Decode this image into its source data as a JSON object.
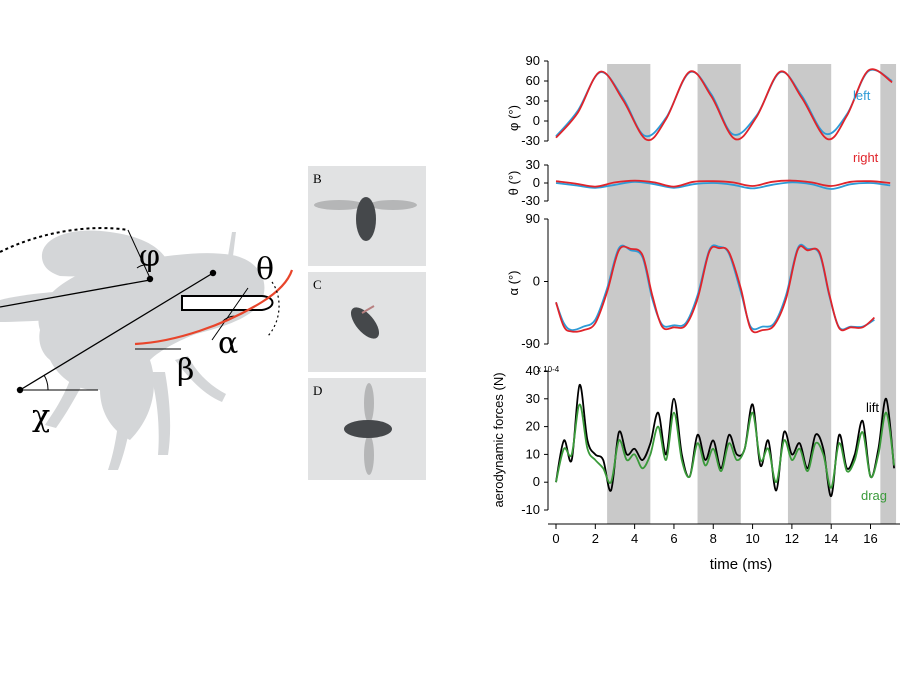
{
  "diagram": {
    "labels": {
      "phi": "φ",
      "theta": "θ",
      "alpha": "α",
      "beta": "β",
      "chi": "χ"
    },
    "colors": {
      "body": "#d4d6d8",
      "wing": "#c9cbcd",
      "stroke_path": "#e8452b"
    }
  },
  "photos": {
    "panels": [
      {
        "letter": "B"
      },
      {
        "letter": "C"
      },
      {
        "letter": "D"
      }
    ]
  },
  "chart_data": {
    "type": "line",
    "shaded_intervals_ms": [
      [
        2.6,
        4.8
      ],
      [
        7.2,
        9.4
      ],
      [
        11.8,
        14.0
      ],
      [
        16.5,
        17.3
      ]
    ],
    "xlabel": "time (ms)",
    "xlim": [
      -0.3,
      17.3
    ],
    "xticks": [
      "0",
      "2",
      "4",
      "6",
      "8",
      "10",
      "12",
      "14",
      "16"
    ],
    "panels": [
      {
        "ylabel": "φ (°)",
        "ylim": [
          -30,
          90
        ],
        "yticks": [
          "90",
          "60",
          "30",
          "0",
          "-30"
        ],
        "series": [
          {
            "name": "left",
            "color": "#2e9bd6",
            "x": [
              0,
              1.1,
              2.25,
              3.4,
              4.5,
              5.6,
              6.8,
              7.9,
              9.0,
              10.2,
              11.4,
              12.5,
              13.7,
              14.8,
              15.9,
              17.1
            ],
            "y": [
              -23,
              15,
              73,
              35,
              -22,
              5,
              73,
              40,
              -20,
              8,
              73,
              38,
              -19,
              10,
              75,
              60
            ]
          },
          {
            "name": "right",
            "color": "#e0242b",
            "x": [
              0,
              1.1,
              2.25,
              3.4,
              4.6,
              5.6,
              6.8,
              7.9,
              9.1,
              10.2,
              11.4,
              12.5,
              13.8,
              14.8,
              15.9,
              17.1
            ],
            "y": [
              -25,
              12,
              74,
              32,
              -28,
              3,
              74,
              37,
              -27,
              6,
              74,
              35,
              -27,
              8,
              76,
              58
            ]
          }
        ]
      },
      {
        "ylabel": "θ (°)",
        "ylim": [
          -30,
          30
        ],
        "yticks": [
          "30",
          "0",
          "-30"
        ],
        "series": [
          {
            "name": "left",
            "color": "#2e9bd6",
            "x": [
              0,
              1,
              2,
              3,
              4,
              5,
              6,
              7,
              8,
              9,
              10,
              11,
              12,
              13,
              14,
              15,
              16,
              17
            ],
            "y": [
              0,
              -4,
              -8,
              -3,
              2,
              -2,
              -8,
              -2,
              0,
              -3,
              -9,
              -3,
              1,
              -2,
              -10,
              -2,
              0,
              -4
            ]
          },
          {
            "name": "right",
            "color": "#e0242b",
            "x": [
              0,
              1,
              2,
              3,
              4,
              5,
              6,
              7,
              8,
              9,
              10,
              11,
              12,
              13,
              14,
              15,
              16,
              17
            ],
            "y": [
              3,
              -1,
              -6,
              1,
              4,
              1,
              -6,
              2,
              3,
              1,
              -5,
              2,
              4,
              1,
              -5,
              2,
              3,
              0
            ]
          }
        ]
      },
      {
        "ylabel": "α (°)",
        "ylim": [
          -90,
          90
        ],
        "yticks": [
          "90",
          "0",
          "-90"
        ],
        "series": [
          {
            "name": "left",
            "color": "#2e9bd6",
            "x": [
              0,
              0.4,
              0.8,
              1.4,
              2.0,
              2.6,
              3.2,
              3.8,
              4.4,
              4.9,
              5.4,
              6.0,
              6.6,
              7.2,
              7.8,
              8.3,
              8.8,
              9.4,
              9.9,
              10.5,
              11.1,
              11.7,
              12.3,
              12.8,
              13.4,
              13.9,
              14.4,
              15.0,
              15.6,
              16.2
            ],
            "y": [
              -30,
              -60,
              -70,
              -65,
              -55,
              -10,
              48,
              45,
              35,
              -25,
              -62,
              -63,
              -60,
              -20,
              45,
              50,
              40,
              -15,
              -65,
              -65,
              -60,
              -20,
              48,
              47,
              40,
              -20,
              -66,
              -65,
              -65,
              -55
            ]
          },
          {
            "name": "right",
            "color": "#e0242b",
            "x": [
              0,
              0.4,
              0.8,
              1.4,
              2.0,
              2.6,
              3.2,
              3.8,
              4.4,
              4.9,
              5.4,
              6.0,
              6.6,
              7.2,
              7.8,
              8.3,
              8.8,
              9.4,
              9.9,
              10.5,
              11.1,
              11.7,
              12.3,
              12.8,
              13.4,
              13.9,
              14.4,
              15.0,
              15.6,
              16.2
            ],
            "y": [
              -30,
              -65,
              -72,
              -70,
              -60,
              -15,
              45,
              47,
              38,
              -20,
              -65,
              -66,
              -63,
              -25,
              43,
              48,
              42,
              -10,
              -68,
              -70,
              -63,
              -25,
              46,
              45,
              42,
              -18,
              -67,
              -66,
              -66,
              -52
            ]
          }
        ]
      },
      {
        "ylabel": "aerodynamic forces (N)",
        "yunit": "x 10-4",
        "ylim": [
          -10,
          40
        ],
        "yticks": [
          "40",
          "30",
          "20",
          "10",
          "0",
          "-10"
        ],
        "series": [
          {
            "name": "lift",
            "color": "#000000",
            "x": [
              0,
              0.4,
              0.8,
              1.2,
              1.6,
              2.0,
              2.4,
              2.8,
              3.2,
              3.6,
              4.0,
              4.4,
              4.8,
              5.2,
              5.6,
              6.0,
              6.4,
              6.8,
              7.2,
              7.6,
              8.0,
              8.4,
              8.8,
              9.2,
              9.6,
              10.0,
              10.4,
              10.8,
              11.2,
              11.6,
              12.0,
              12.4,
              12.8,
              13.2,
              13.6,
              14.0,
              14.4,
              14.8,
              15.2,
              15.6,
              16.0,
              16.4,
              16.8,
              17.2
            ],
            "y": [
              0,
              15,
              8,
              35,
              15,
              10,
              8,
              -3,
              18,
              10,
              12,
              8,
              14,
              25,
              10,
              30,
              10,
              2,
              17,
              8,
              15,
              5,
              17,
              10,
              12,
              28,
              6,
              15,
              -3,
              18,
              10,
              14,
              5,
              17,
              12,
              -5,
              17,
              5,
              10,
              22,
              2,
              12,
              30,
              5
            ]
          },
          {
            "name": "drag",
            "color": "#3a9a3a",
            "x": [
              0,
              0.4,
              0.8,
              1.2,
              1.6,
              2.0,
              2.4,
              2.8,
              3.2,
              3.6,
              4.0,
              4.4,
              4.8,
              5.2,
              5.6,
              6.0,
              6.4,
              6.8,
              7.2,
              7.6,
              8.0,
              8.4,
              8.8,
              9.2,
              9.6,
              10.0,
              10.4,
              10.8,
              11.2,
              11.6,
              12.0,
              12.4,
              12.8,
              13.2,
              13.6,
              14.0,
              14.4,
              14.8,
              15.2,
              15.6,
              16.0,
              16.4,
              16.8,
              17.2
            ],
            "y": [
              0,
              12,
              10,
              28,
              12,
              8,
              5,
              0,
              15,
              8,
              10,
              5,
              10,
              20,
              8,
              25,
              8,
              2,
              14,
              6,
              12,
              4,
              14,
              8,
              12,
              25,
              8,
              12,
              0,
              15,
              8,
              12,
              4,
              14,
              10,
              -2,
              14,
              4,
              8,
              18,
              2,
              10,
              25,
              6
            ]
          }
        ]
      }
    ]
  }
}
